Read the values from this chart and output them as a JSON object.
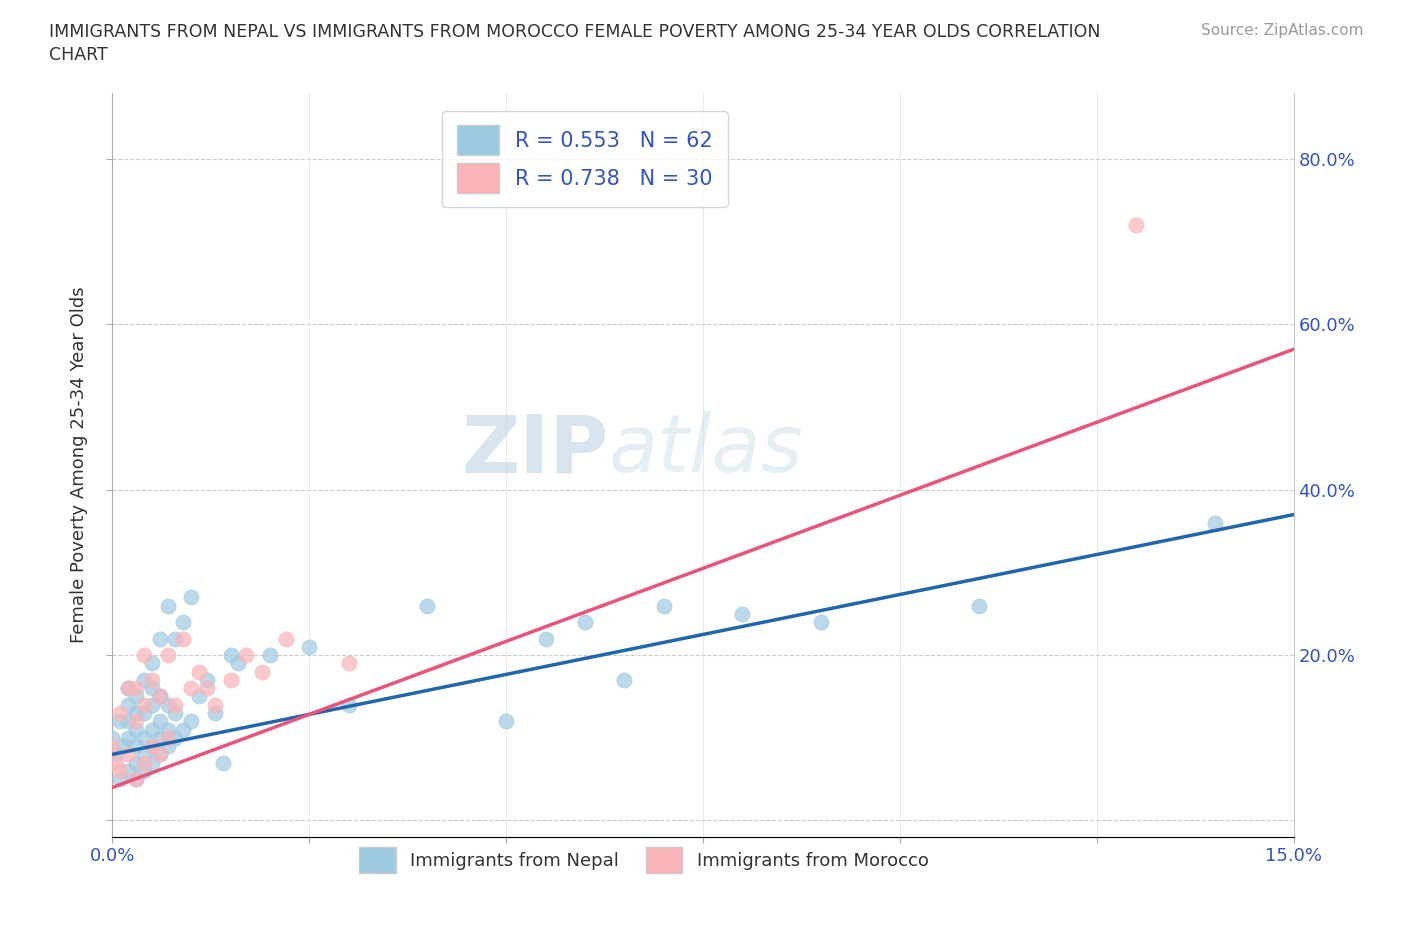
{
  "title_line1": "IMMIGRANTS FROM NEPAL VS IMMIGRANTS FROM MOROCCO FEMALE POVERTY AMONG 25-34 YEAR OLDS CORRELATION",
  "title_line2": "CHART",
  "source": "Source: ZipAtlas.com",
  "ylabel": "Female Poverty Among 25-34 Year Olds",
  "xlim": [
    0.0,
    0.15
  ],
  "ylim": [
    -0.02,
    0.88
  ],
  "xticks": [
    0.0,
    0.025,
    0.05,
    0.075,
    0.1,
    0.125,
    0.15
  ],
  "ytick_positions": [
    0.0,
    0.2,
    0.4,
    0.6,
    0.8
  ],
  "ytick_labels_right": [
    "",
    "20.0%",
    "40.0%",
    "60.0%",
    "80.0%"
  ],
  "xtick_labels": [
    "0.0%",
    "",
    "",
    "",
    "",
    "",
    "15.0%"
  ],
  "nepal_color": "#9ecae1",
  "morocco_color": "#fbb4b9",
  "nepal_line_color": "#2166ac",
  "morocco_line_color": "#e8547a",
  "nepal_R": 0.553,
  "nepal_N": 62,
  "morocco_R": 0.738,
  "morocco_N": 30,
  "watermark_zip": "ZIP",
  "watermark_atlas": "atlas",
  "nepal_scatter_x": [
    0.0,
    0.0005,
    0.001,
    0.001,
    0.0015,
    0.002,
    0.002,
    0.002,
    0.002,
    0.002,
    0.003,
    0.003,
    0.003,
    0.003,
    0.003,
    0.003,
    0.004,
    0.004,
    0.004,
    0.004,
    0.004,
    0.005,
    0.005,
    0.005,
    0.005,
    0.005,
    0.005,
    0.006,
    0.006,
    0.006,
    0.006,
    0.006,
    0.007,
    0.007,
    0.007,
    0.007,
    0.008,
    0.008,
    0.008,
    0.009,
    0.009,
    0.01,
    0.01,
    0.011,
    0.012,
    0.013,
    0.014,
    0.015,
    0.016,
    0.02,
    0.025,
    0.03,
    0.04,
    0.05,
    0.055,
    0.06,
    0.065,
    0.07,
    0.08,
    0.09,
    0.11,
    0.14
  ],
  "nepal_scatter_y": [
    0.1,
    0.08,
    0.05,
    0.12,
    0.09,
    0.06,
    0.1,
    0.12,
    0.14,
    0.16,
    0.05,
    0.07,
    0.09,
    0.11,
    0.13,
    0.15,
    0.06,
    0.08,
    0.1,
    0.13,
    0.17,
    0.07,
    0.09,
    0.11,
    0.14,
    0.16,
    0.19,
    0.08,
    0.1,
    0.12,
    0.15,
    0.22,
    0.09,
    0.11,
    0.14,
    0.26,
    0.1,
    0.13,
    0.22,
    0.11,
    0.24,
    0.12,
    0.27,
    0.15,
    0.17,
    0.13,
    0.07,
    0.2,
    0.19,
    0.2,
    0.21,
    0.14,
    0.26,
    0.12,
    0.22,
    0.24,
    0.17,
    0.26,
    0.25,
    0.24,
    0.26,
    0.36
  ],
  "morocco_scatter_x": [
    0.0,
    0.0005,
    0.001,
    0.001,
    0.002,
    0.002,
    0.003,
    0.003,
    0.003,
    0.004,
    0.004,
    0.004,
    0.005,
    0.005,
    0.006,
    0.006,
    0.007,
    0.007,
    0.008,
    0.009,
    0.01,
    0.011,
    0.012,
    0.013,
    0.015,
    0.017,
    0.019,
    0.022,
    0.03,
    0.13
  ],
  "morocco_scatter_y": [
    0.09,
    0.07,
    0.06,
    0.13,
    0.08,
    0.16,
    0.05,
    0.12,
    0.16,
    0.07,
    0.14,
    0.2,
    0.09,
    0.17,
    0.08,
    0.15,
    0.1,
    0.2,
    0.14,
    0.22,
    0.16,
    0.18,
    0.16,
    0.14,
    0.17,
    0.2,
    0.18,
    0.22,
    0.19,
    0.72
  ],
  "nepal_trend_x": [
    0.0,
    0.15
  ],
  "nepal_trend_y": [
    0.08,
    0.37
  ],
  "morocco_trend_x": [
    0.0,
    0.15
  ],
  "morocco_trend_y": [
    0.04,
    0.57
  ]
}
